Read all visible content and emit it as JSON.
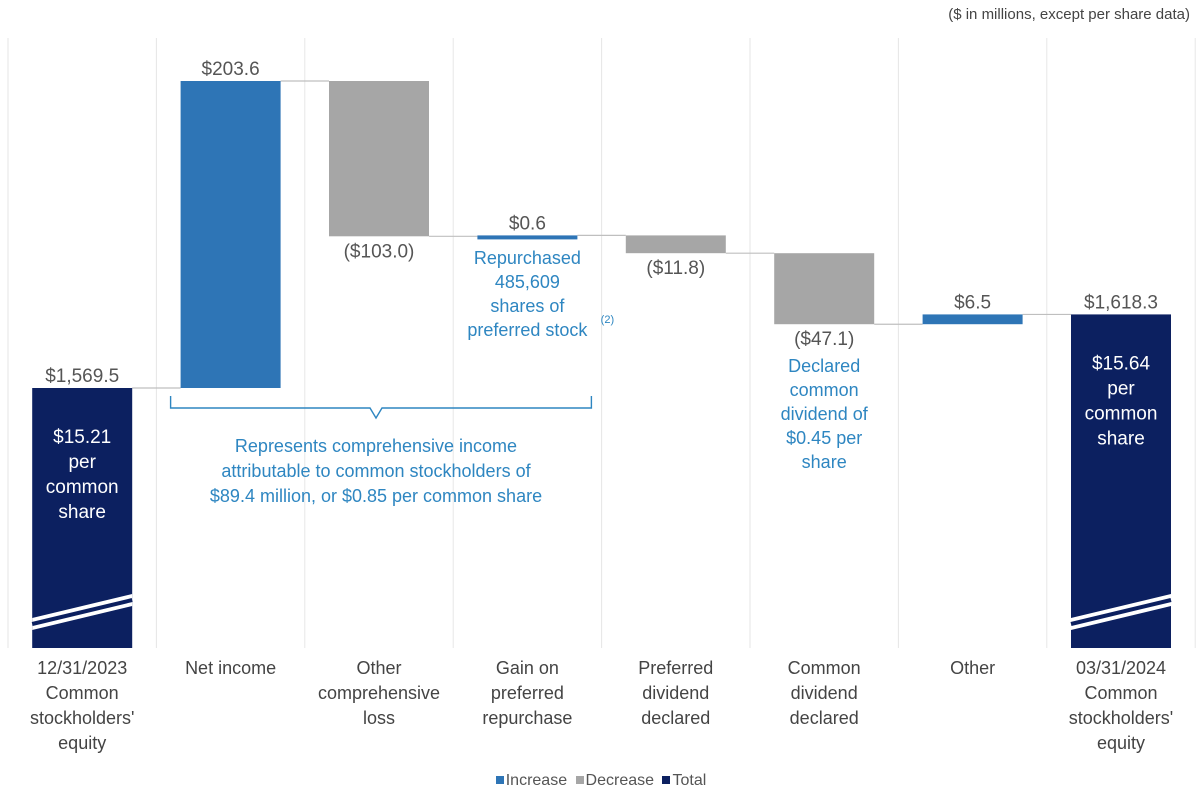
{
  "units_note": "($ in millions, except per share data)",
  "colors": {
    "increase": "#2e75b6",
    "decrease": "#a6a6a6",
    "total": "#0c2060",
    "annotation": "#2e86c1",
    "connector": "#bfbfbf"
  },
  "chart_data": {
    "type": "waterfall",
    "categories": [
      [
        "12/31/2023",
        "Common",
        "stockholders'",
        "equity"
      ],
      [
        "Net income"
      ],
      [
        "Other",
        "comprehensive",
        "loss"
      ],
      [
        "Gain on",
        "preferred",
        "repurchase"
      ],
      [
        "Preferred",
        "dividend",
        "declared"
      ],
      [
        "Common",
        "dividend",
        "declared"
      ],
      [
        "Other"
      ],
      [
        "03/31/2024",
        "Common",
        "stockholders'",
        "equity"
      ]
    ],
    "steps": [
      {
        "kind": "total",
        "value": 1569.5,
        "label": "$1,569.5"
      },
      {
        "kind": "increase",
        "value": 203.6,
        "label": "$203.6"
      },
      {
        "kind": "decrease",
        "value": -103.0,
        "label": "($103.0)"
      },
      {
        "kind": "increase",
        "value": 0.6,
        "label": "$0.6"
      },
      {
        "kind": "decrease",
        "value": -11.8,
        "label": "($11.8)"
      },
      {
        "kind": "decrease",
        "value": -47.1,
        "label": "($47.1)"
      },
      {
        "kind": "increase",
        "value": 6.5,
        "label": "$6.5"
      },
      {
        "kind": "total",
        "value": 1618.3,
        "label": "$1,618.3"
      }
    ],
    "per_share": [
      [
        "$15.21",
        "per",
        "common",
        "share"
      ],
      [
        "$15.64",
        "per",
        "common",
        "share"
      ]
    ],
    "annotations": {
      "repurchase": [
        "Repurchased",
        "485,609",
        "shares of",
        "preferred stock"
      ],
      "repurchase_footnote": "(2)",
      "comprehensive": [
        "Represents comprehensive income",
        "attributable to common stockholders of",
        "$89.4 million, or $0.85 per common share"
      ],
      "common_dividend": [
        "Declared",
        "common",
        "dividend of",
        "$0.45 per",
        "share"
      ]
    },
    "legend": [
      "Increase",
      "Decrease",
      "Total"
    ],
    "legend_position": "bottom-center",
    "y_axis_broken": true
  }
}
